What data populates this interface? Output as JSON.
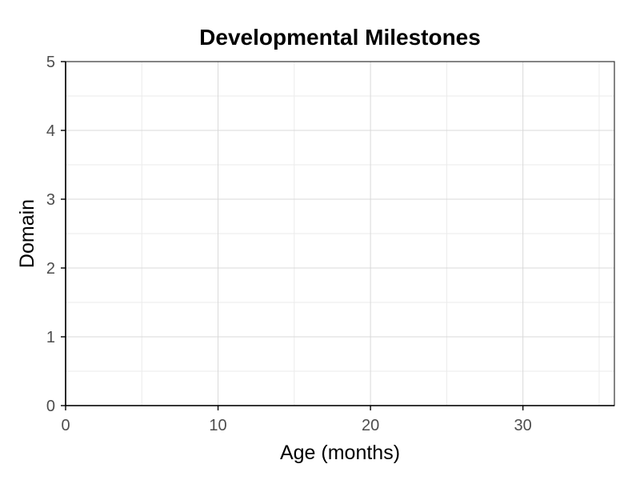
{
  "chart_data": {
    "type": "scatter",
    "title": "Developmental Milestones",
    "xlabel": "Age (months)",
    "ylabel": "Domain",
    "xlim": [
      0,
      36
    ],
    "ylim": [
      0,
      5
    ],
    "xticks": [
      0,
      10,
      20,
      30
    ],
    "yticks": [
      0,
      1,
      2,
      3,
      4,
      5
    ],
    "x_minor_ticks": [
      5,
      15,
      25,
      35
    ],
    "y_minor_ticks": [
      0.5,
      1.5,
      2.5,
      3.5,
      4.5
    ],
    "grid": true,
    "series": [],
    "colors": {
      "major_grid": "#d9d9d9",
      "minor_grid": "#ebebeb",
      "axis_line": "#000000",
      "panel_border": "#333333",
      "tick_text": "#4d4d4d"
    }
  }
}
